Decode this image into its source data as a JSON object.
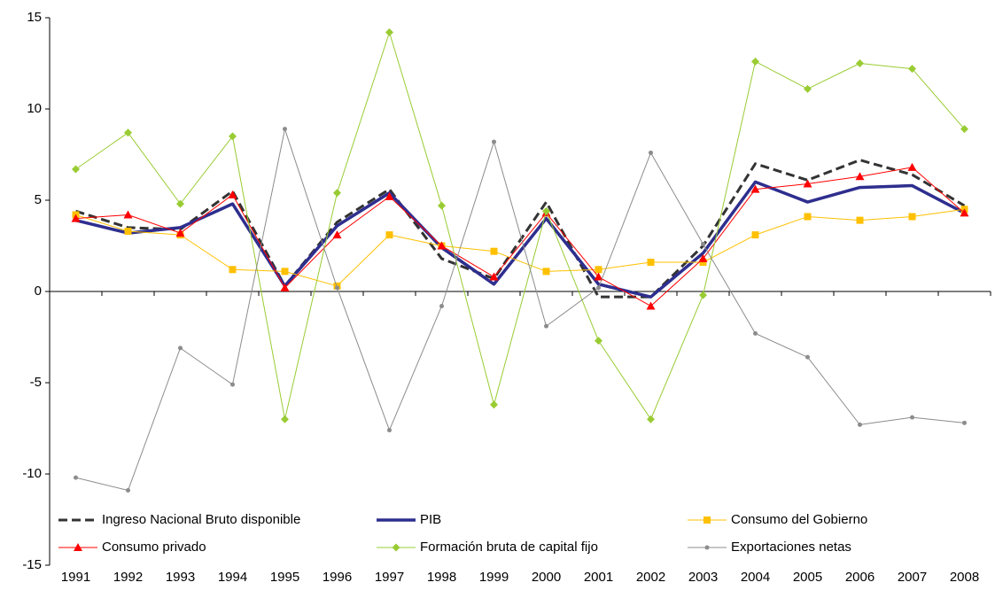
{
  "chart_data": {
    "type": "line",
    "categories": [
      "1991",
      "1992",
      "1993",
      "1994",
      "1995",
      "1996",
      "1997",
      "1998",
      "1999",
      "2000",
      "2001",
      "2002",
      "2003",
      "2004",
      "2005",
      "2006",
      "2007",
      "2008"
    ],
    "ylim": [
      -15,
      15
    ],
    "yticks": [
      -15,
      -10,
      -5,
      0,
      5,
      10,
      15
    ],
    "grid": false,
    "legend": "bottom",
    "series": [
      {
        "name": "Ingreso Nacional Bruto disponible",
        "color": "#333333",
        "dash": true,
        "marker": "none",
        "width": 3,
        "values": [
          4.4,
          3.5,
          3.4,
          5.5,
          0.3,
          3.8,
          5.6,
          1.8,
          0.7,
          4.9,
          -0.3,
          -0.3,
          2.5,
          7.0,
          6.1,
          7.2,
          6.4,
          4.7
        ]
      },
      {
        "name": "PIB",
        "color": "#2e2e8f",
        "dash": false,
        "marker": "none",
        "width": 3.5,
        "values": [
          3.9,
          3.2,
          3.5,
          4.8,
          0.3,
          3.6,
          5.4,
          2.4,
          0.4,
          4.0,
          0.4,
          -0.3,
          2.1,
          6.0,
          4.9,
          5.7,
          5.8,
          4.3
        ]
      },
      {
        "name": "Consumo del Gobierno",
        "color": "#ffc000",
        "dash": false,
        "marker": "square",
        "width": 1,
        "values": [
          4.2,
          3.3,
          3.1,
          1.2,
          1.1,
          0.3,
          3.1,
          2.5,
          2.2,
          1.1,
          1.2,
          1.6,
          1.6,
          3.1,
          4.1,
          3.9,
          4.1,
          4.5
        ]
      },
      {
        "name": "Consumo privado",
        "color": "#ff0000",
        "dash": false,
        "marker": "triangle",
        "width": 1,
        "values": [
          4.0,
          4.2,
          3.2,
          5.3,
          0.2,
          3.1,
          5.2,
          2.5,
          0.8,
          4.3,
          0.8,
          -0.8,
          1.8,
          5.6,
          5.9,
          6.3,
          6.8,
          4.3
        ]
      },
      {
        "name": "Formación bruta de capital fijo",
        "color": "#99cc33",
        "dash": false,
        "marker": "diamond",
        "width": 1,
        "values": [
          6.7,
          8.7,
          4.8,
          8.5,
          -7.0,
          5.4,
          14.2,
          4.7,
          -6.2,
          4.4,
          -2.7,
          -7.0,
          -0.2,
          12.6,
          11.1,
          12.5,
          12.2,
          8.9
        ]
      },
      {
        "name": "Exportaciones netas",
        "color": "#8c8c8c",
        "dash": false,
        "marker": "circle",
        "width": 1,
        "values": [
          -10.2,
          -10.9,
          -3.1,
          -5.1,
          8.9,
          0.2,
          -7.6,
          -0.8,
          8.2,
          -1.9,
          0.2,
          7.6,
          2.6,
          -2.3,
          -3.6,
          -7.3,
          -6.9,
          -7.2
        ]
      }
    ]
  }
}
